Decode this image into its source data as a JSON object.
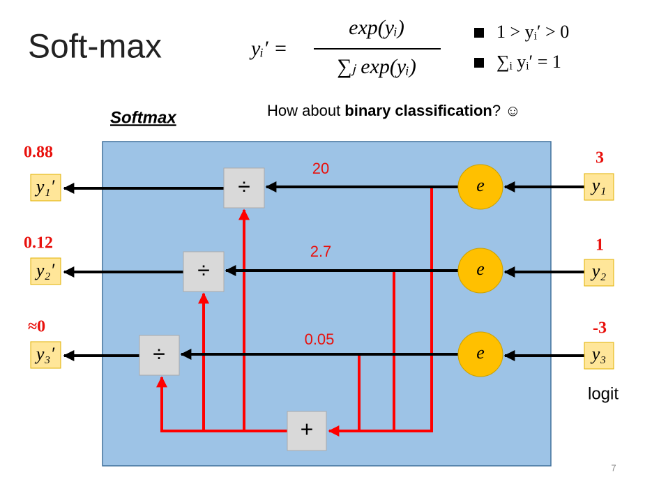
{
  "header": {
    "title": "Soft-max",
    "formula": {
      "lhs": "yᵢ′ =",
      "numerator": "exp(yᵢ)",
      "denominator": "∑ⱼ exp(yᵢ)"
    },
    "bullets": [
      "1 > yᵢ′ > 0",
      "∑ᵢ yᵢ′ = 1"
    ]
  },
  "diagram": {
    "label": "Softmax",
    "question": {
      "prefix": "How about ",
      "bold": "binary classification",
      "suffix": "? ☺"
    },
    "outputs": [
      {
        "label": "y₁′",
        "value": 0.88
      },
      {
        "label": "y₂′",
        "value": 0.12
      },
      {
        "label": "y₃′",
        "value": "≈0"
      }
    ],
    "inputs": [
      {
        "label": "y₁",
        "value": 3
      },
      {
        "label": "y₂",
        "value": 1
      },
      {
        "label": "y₃",
        "value": -3
      }
    ],
    "exponentials": [
      20,
      2.7,
      0.05
    ],
    "exp_symbol": "e",
    "divide_symbol": "÷",
    "sum_symbol": "+",
    "input_caption": "logit"
  },
  "footer": {
    "page": 7
  }
}
